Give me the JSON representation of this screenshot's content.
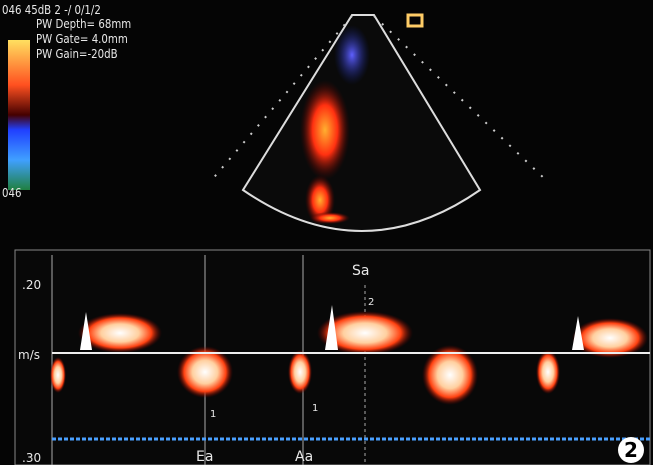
{
  "header": {
    "line1": "046 45dB  2 -/ 0/1/2",
    "pw_depth": "PW Depth= 68mm",
    "pw_gate": "PW Gate= 4.0mm",
    "pw_gain": "PW Gain=-20dB"
  },
  "color_bar": {
    "bottom_label": "046"
  },
  "spectral": {
    "scale_top": ".20",
    "unit": "m/s",
    "scale_bottom": ".30",
    "labels": {
      "sa": "Sa",
      "ea": "Ea",
      "aa": "Aa"
    },
    "markers": [
      "2",
      "1",
      "1"
    ]
  },
  "figure_number": "2"
}
